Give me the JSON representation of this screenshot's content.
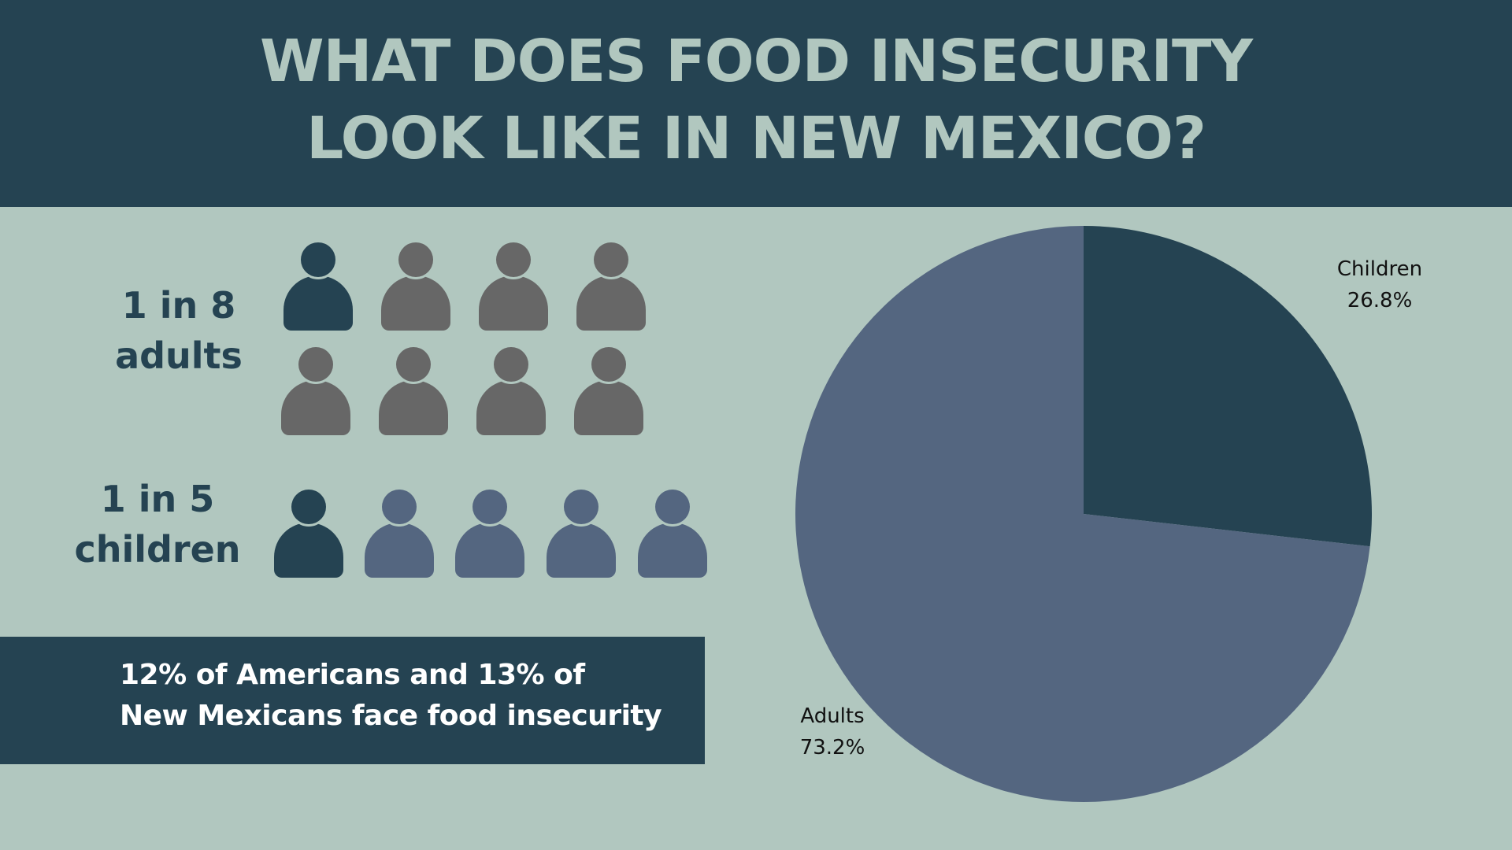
{
  "title": {
    "line1": "WHAT DOES FOOD INSECURITY",
    "line2": "LOOK LIKE IN NEW MEXICO?"
  },
  "stats": {
    "adults": {
      "line1": "1 in 8",
      "line2": "adults",
      "highlighted": 1,
      "total": 8
    },
    "children": {
      "line1": "1 in 5",
      "line2": "children",
      "highlighted": 1,
      "total": 5
    }
  },
  "note": {
    "line1": "12% of Americans and 13% of",
    "line2": "New Mexicans face food insecurity"
  },
  "icons": {
    "person": "person-icon"
  },
  "colors": {
    "header_bg": "#254352",
    "page_bg": "#b1c7bf",
    "highlight": "#254352",
    "adult_icon": "#676767",
    "child_icon": "#546680",
    "children_slice": "#254352",
    "adults_slice": "#546680"
  },
  "chart_data": {
    "type": "pie",
    "title": "",
    "categories": [
      "Children",
      "Adults"
    ],
    "values": [
      26.8,
      73.2
    ],
    "value_labels": [
      "26.8%",
      "73.2%"
    ],
    "colors": [
      "#254352",
      "#546680"
    ],
    "start": "top",
    "direction": "clockwise"
  }
}
